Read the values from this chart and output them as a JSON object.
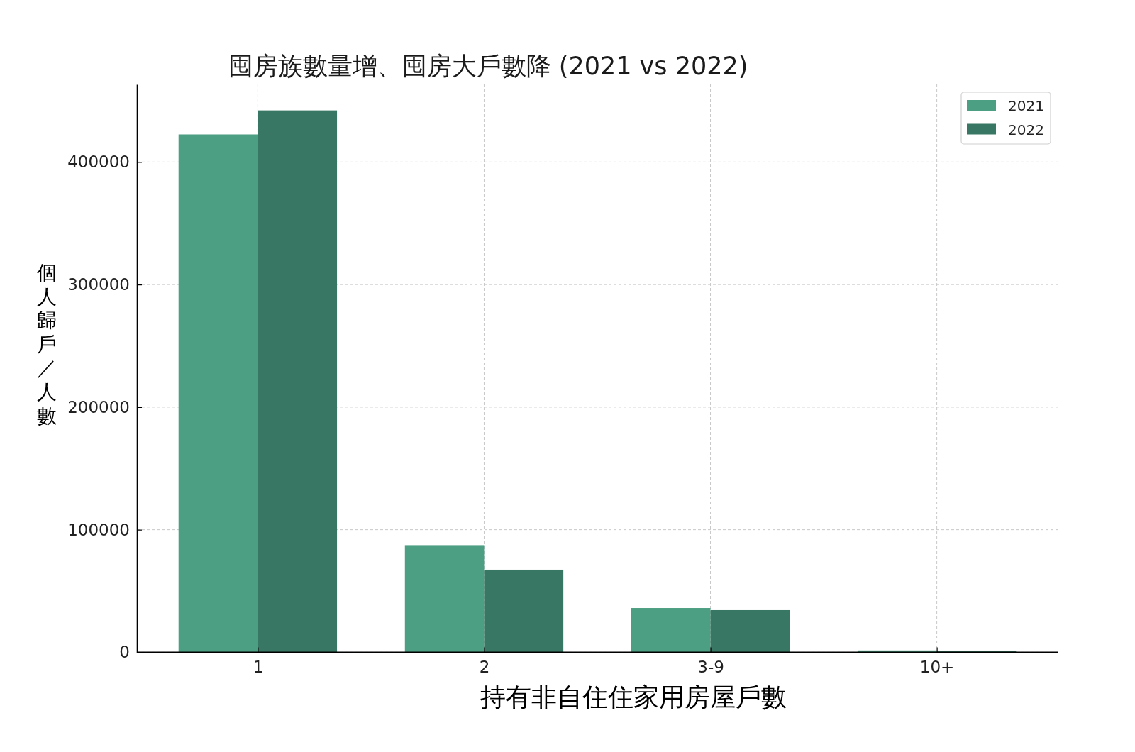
{
  "chart_data": {
    "type": "bar",
    "title": "囤房族數量增、囤房大戶數降 (2021 vs 2022)",
    "xlabel": "持有非自住住家用房屋戶數",
    "ylabel": "個人歸戶／人數",
    "categories": [
      "1",
      "2",
      "3-9",
      "10+"
    ],
    "series": [
      {
        "name": "2021",
        "color": "#4c9f82",
        "values": [
          422500,
          87400,
          36100,
          1500
        ]
      },
      {
        "name": "2022",
        "color": "#387763",
        "values": [
          442100,
          67400,
          34400,
          1400
        ]
      }
    ],
    "ylim": [
      0,
      463300
    ],
    "yticks": [
      0,
      100000,
      200000,
      300000,
      400000
    ],
    "grid": true,
    "legend": "top right"
  }
}
